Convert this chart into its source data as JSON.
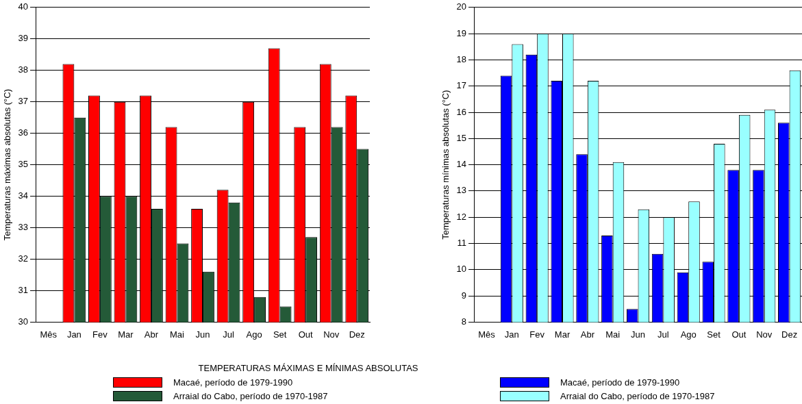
{
  "chart_data": [
    {
      "type": "bar",
      "title": "TEMPERATURAS MÁXIMAS E MÍNIMAS ABSOLUTAS",
      "ylabel": "Temperaturas máximas absolutas (°C)",
      "categories": [
        "Mês",
        "Jan",
        "Fev",
        "Mar",
        "Abr",
        "Mai",
        "Jun",
        "Jul",
        "Ago",
        "Set",
        "Out",
        "Nov",
        "Dez"
      ],
      "ylim": [
        30,
        40
      ],
      "yticks": [
        30,
        31,
        32,
        33,
        34,
        35,
        36,
        37,
        38,
        39,
        40
      ],
      "grid": "y",
      "legend": "bottom",
      "series": [
        {
          "name": "Macaé, período de 1979-1990",
          "color": "#ff0000",
          "values": [
            null,
            38.2,
            37.2,
            37.0,
            37.2,
            36.2,
            33.6,
            34.2,
            37.0,
            38.7,
            36.2,
            38.2,
            37.2
          ]
        },
        {
          "name": "Arraial do Cabo, período de 1970-1987",
          "color": "#245a38",
          "values": [
            null,
            36.5,
            34.0,
            34.0,
            33.6,
            32.5,
            31.6,
            33.8,
            30.8,
            30.5,
            32.7,
            36.2,
            35.5
          ]
        }
      ]
    },
    {
      "type": "bar",
      "ylabel": "Temperaturas mínimas absolutas (°C)",
      "categories": [
        "Mês",
        "Jan",
        "Fev",
        "Mar",
        "Abr",
        "Mai",
        "Jun",
        "Jul",
        "Ago",
        "Set",
        "Out",
        "Nov",
        "Dez"
      ],
      "ylim": [
        8,
        20
      ],
      "yticks": [
        8,
        9,
        10,
        11,
        12,
        13,
        14,
        15,
        16,
        17,
        18,
        19,
        20
      ],
      "grid": "y",
      "legend": "bottom",
      "series": [
        {
          "name": "Macaé, período de 1979-1990",
          "color": "#0000ff",
          "values": [
            null,
            17.4,
            18.2,
            17.2,
            14.4,
            11.3,
            8.5,
            10.6,
            9.9,
            10.3,
            13.8,
            13.8,
            15.6
          ]
        },
        {
          "name": "Arraial do Cabo, período de 1970-1987",
          "color": "#99ffff",
          "values": [
            null,
            18.6,
            19.0,
            19.0,
            17.2,
            14.1,
            12.3,
            12.0,
            12.6,
            14.8,
            15.9,
            16.1,
            17.6
          ]
        }
      ]
    }
  ]
}
